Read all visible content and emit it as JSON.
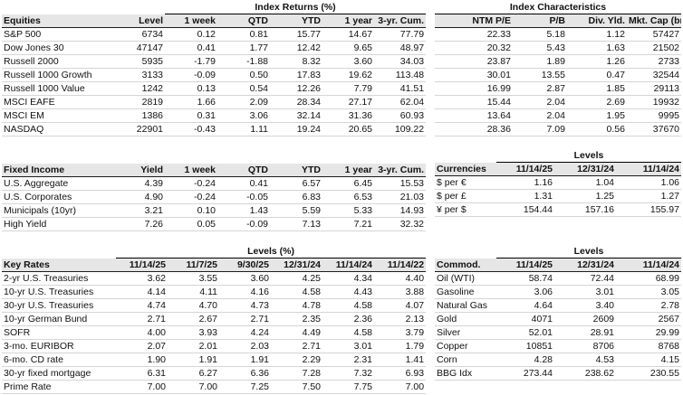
{
  "colors": {
    "header-bg": "#e6e6e6",
    "dark-line": "#1c1c1c",
    "row-line": "#d5d5d5",
    "spanner-line": "#000000"
  },
  "tables": {
    "equities": {
      "spanner": "Index Returns (%)",
      "header": [
        "Equities",
        "Level",
        "1 week",
        "QTD",
        "YTD",
        "1 year",
        "3-yr. Cum."
      ],
      "rows": [
        [
          "S&P 500",
          "6734",
          "0.12",
          "0.81",
          "15.77",
          "14.67",
          "77.79"
        ],
        [
          "Dow Jones 30",
          "47147",
          "0.41",
          "1.77",
          "12.42",
          "9.65",
          "48.97"
        ],
        [
          "Russell 2000",
          "5935",
          "-1.79",
          "-1.88",
          "8.32",
          "3.60",
          "34.03"
        ],
        [
          "Russell 1000 Growth",
          "3133",
          "-0.09",
          "0.50",
          "17.83",
          "19.62",
          "113.48"
        ],
        [
          "Russell 1000 Value",
          "1242",
          "0.13",
          "0.54",
          "12.26",
          "7.79",
          "41.51"
        ],
        [
          "MSCI EAFE",
          "2819",
          "1.66",
          "2.09",
          "28.34",
          "27.17",
          "62.04"
        ],
        [
          "MSCI EM",
          "1386",
          "0.31",
          "3.06",
          "32.14",
          "31.36",
          "60.93"
        ],
        [
          "NASDAQ",
          "22901",
          "-0.43",
          "1.11",
          "19.24",
          "20.65",
          "109.22"
        ]
      ]
    },
    "index_characteristics": {
      "spanner": "Index Characteristics",
      "header": [
        "NTM P/E",
        "P/B",
        "Div. Yld.",
        "Mkt. Cap (bn)"
      ],
      "rows": [
        [
          "22.33",
          "5.18",
          "1.12",
          "57427"
        ],
        [
          "20.32",
          "5.43",
          "1.63",
          "21502"
        ],
        [
          "23.87",
          "1.89",
          "1.26",
          "2733"
        ],
        [
          "30.01",
          "13.55",
          "0.47",
          "32544"
        ],
        [
          "16.99",
          "2.87",
          "1.85",
          "29113"
        ],
        [
          "15.44",
          "2.04",
          "2.69",
          "19932"
        ],
        [
          "13.64",
          "2.04",
          "1.95",
          "9995"
        ],
        [
          "28.36",
          "7.09",
          "0.56",
          "37670"
        ]
      ]
    },
    "fixed_income": {
      "header": [
        "Fixed Income",
        "Yield",
        "1 week",
        "QTD",
        "YTD",
        "1 year",
        "3-yr. Cum."
      ],
      "rows": [
        [
          "U.S. Aggregate",
          "4.39",
          "-0.24",
          "0.41",
          "6.57",
          "6.45",
          "15.53"
        ],
        [
          "U.S. Corporates",
          "4.90",
          "-0.24",
          "-0.05",
          "6.83",
          "6.53",
          "21.03"
        ],
        [
          "Municipals (10yr)",
          "3.21",
          "0.10",
          "1.43",
          "5.59",
          "5.33",
          "14.93"
        ],
        [
          "High Yield",
          "7.26",
          "0.05",
          "-0.09",
          "7.13",
          "7.21",
          "32.32"
        ]
      ]
    },
    "currencies": {
      "spanner": "Levels",
      "header": [
        "Currencies",
        "11/14/25",
        "12/31/24",
        "11/14/24"
      ],
      "rows": [
        [
          "$ per €",
          "1.16",
          "1.04",
          "1.06"
        ],
        [
          "$ per £",
          "1.31",
          "1.25",
          "1.27"
        ],
        [
          "¥ per $",
          "154.44",
          "157.16",
          "155.97"
        ]
      ]
    },
    "key_rates": {
      "spanner": "Levels (%)",
      "header": [
        "Key Rates",
        "11/14/25",
        "11/7/25",
        "9/30/25",
        "12/31/24",
        "11/14/24",
        "11/14/22"
      ],
      "rows": [
        [
          "2-yr U.S. Treasuries",
          "3.62",
          "3.55",
          "3.60",
          "4.25",
          "4.34",
          "4.40"
        ],
        [
          "10-yr U.S. Treasuries",
          "4.14",
          "4.11",
          "4.16",
          "4.58",
          "4.43",
          "3.88"
        ],
        [
          "30-yr U.S. Treasuries",
          "4.74",
          "4.70",
          "4.73",
          "4.78",
          "4.58",
          "4.07"
        ],
        [
          "10-yr German Bund",
          "2.71",
          "2.67",
          "2.71",
          "2.35",
          "2.36",
          "2.13"
        ],
        [
          "SOFR",
          "4.00",
          "3.93",
          "4.24",
          "4.49",
          "4.58",
          "3.79"
        ],
        [
          "3-mo. EURIBOR",
          "2.07",
          "2.01",
          "2.03",
          "2.71",
          "3.01",
          "1.79"
        ],
        [
          "6-mo. CD rate",
          "1.90",
          "1.91",
          "1.91",
          "2.29",
          "2.31",
          "1.41"
        ],
        [
          "30-yr fixed mortgage",
          "6.31",
          "6.27",
          "6.36",
          "7.28",
          "7.32",
          "6.93"
        ],
        [
          "Prime Rate",
          "7.00",
          "7.00",
          "7.25",
          "7.50",
          "7.75",
          "7.00"
        ]
      ]
    },
    "commodities": {
      "spanner": "Levels",
      "header": [
        "Commod.",
        "11/14/25",
        "12/31/24",
        "11/14/24"
      ],
      "rows": [
        [
          "Oil (WTI)",
          "58.74",
          "72.44",
          "68.99"
        ],
        [
          "Gasoline",
          "3.06",
          "3.01",
          "3.05"
        ],
        [
          "Natural Gas",
          "4.64",
          "3.40",
          "2.78"
        ],
        [
          "Gold",
          "4071",
          "2609",
          "2567"
        ],
        [
          "Silver",
          "52.01",
          "28.91",
          "29.99"
        ],
        [
          "Copper",
          "10851",
          "8706",
          "8768"
        ],
        [
          "Corn",
          "4.28",
          "4.53",
          "4.15"
        ],
        [
          "BBG Idx",
          "273.44",
          "238.62",
          "230.55"
        ]
      ]
    }
  }
}
